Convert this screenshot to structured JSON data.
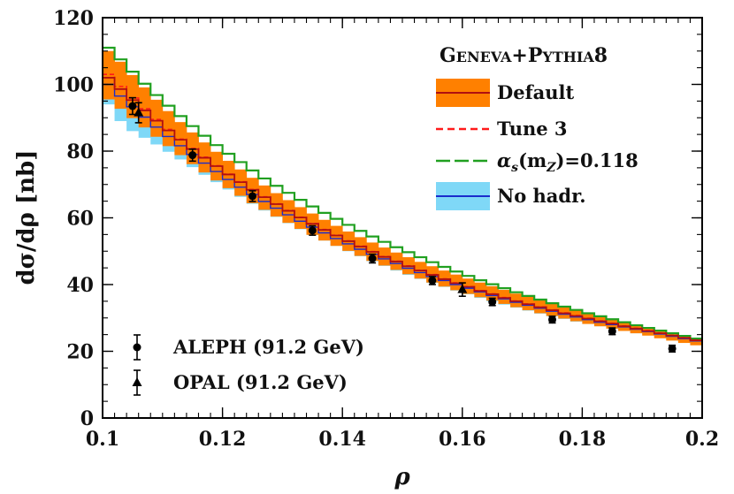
{
  "chart_data": {
    "type": "line",
    "xlabel": "ρ",
    "ylabel": "dσ/dρ [nb]",
    "xlim": [
      0.1,
      0.2
    ],
    "ylim": [
      0,
      120
    ],
    "xticks": [
      0.1,
      0.12,
      0.14,
      0.16,
      0.18,
      0.2
    ],
    "xtick_labels": [
      "0.1",
      "0.12",
      "0.14",
      "0.16",
      "0.18",
      "0.2"
    ],
    "yticks": [
      0,
      20,
      40,
      60,
      80,
      100,
      120
    ],
    "ytick_labels": [
      "0",
      "20",
      "40",
      "60",
      "80",
      "100",
      "120"
    ],
    "grid": false,
    "legend_title": "Geneva+Pythia8",
    "legend_title_parts": [
      {
        "text": "G",
        "big": true
      },
      {
        "text": "ENEVA",
        "big": false
      },
      {
        "text": "+P",
        "big": true
      },
      {
        "text": "YTHIA",
        "big": false
      },
      {
        "text": "8",
        "big": true
      }
    ],
    "legend_position": "top-right",
    "bin_edges": [
      0.1,
      0.102,
      0.104,
      0.106,
      0.108,
      0.11,
      0.112,
      0.114,
      0.116,
      0.118,
      0.12,
      0.122,
      0.124,
      0.126,
      0.128,
      0.13,
      0.132,
      0.134,
      0.136,
      0.138,
      0.14,
      0.142,
      0.144,
      0.146,
      0.148,
      0.15,
      0.152,
      0.154,
      0.156,
      0.158,
      0.16,
      0.162,
      0.164,
      0.166,
      0.168,
      0.17,
      0.172,
      0.174,
      0.176,
      0.178,
      0.18,
      0.182,
      0.184,
      0.186,
      0.188,
      0.19,
      0.192,
      0.194,
      0.196,
      0.198,
      0.2
    ],
    "series": [
      {
        "name": "Default",
        "style": "band-line",
        "color": "#ff8000",
        "line_color": "#b01010",
        "central": [
          102.0,
          98.6,
          95.3,
          92.2,
          89.1,
          86.2,
          83.4,
          80.6,
          78.0,
          75.5,
          73.0,
          70.7,
          68.4,
          66.2,
          64.1,
          62.1,
          60.1,
          58.2,
          56.4,
          54.7,
          53.0,
          51.4,
          49.8,
          48.3,
          46.9,
          45.5,
          44.2,
          42.9,
          41.6,
          40.4,
          39.3,
          38.1,
          37.1,
          36.0,
          35.0,
          34.1,
          33.2,
          32.3,
          31.4,
          30.6,
          29.8,
          29.0,
          28.3,
          27.5,
          26.8,
          26.1,
          25.4,
          24.7,
          24.0,
          23.3
        ],
        "low": [
          95.5,
          92.7,
          89.9,
          87.1,
          84.3,
          81.5,
          78.8,
          76.1,
          73.6,
          71.2,
          68.9,
          66.6,
          64.4,
          62.4,
          60.4,
          58.5,
          56.7,
          54.9,
          53.2,
          51.6,
          50.1,
          48.6,
          47.1,
          45.7,
          44.4,
          43.1,
          41.8,
          40.6,
          39.4,
          38.3,
          37.2,
          36.2,
          35.2,
          34.2,
          33.2,
          32.3,
          31.4,
          30.6,
          29.8,
          29.0,
          28.2,
          27.5,
          26.8,
          26.1,
          25.4,
          24.7,
          23.9,
          23.2,
          22.5,
          21.8
        ],
        "high": [
          110.0,
          106.8,
          102.8,
          99.1,
          95.4,
          92.0,
          88.7,
          85.6,
          82.6,
          79.8,
          77.1,
          74.5,
          72.0,
          69.7,
          67.4,
          65.3,
          63.2,
          61.3,
          59.4,
          57.6,
          55.9,
          54.2,
          52.6,
          51.1,
          49.6,
          48.2,
          46.8,
          45.5,
          44.2,
          43.0,
          41.8,
          40.6,
          39.5,
          38.4,
          37.3,
          36.3,
          35.3,
          34.3,
          33.4,
          32.5,
          31.6,
          30.7,
          29.8,
          28.9,
          28.0,
          27.2,
          26.4,
          25.6,
          24.8,
          24.0
        ]
      },
      {
        "name": "Tune 3",
        "style": "dashed",
        "color": "#ff1a1a",
        "values": [
          103.0,
          99.4,
          95.9,
          92.7,
          89.5,
          86.5,
          83.6,
          80.8,
          78.2,
          75.6,
          73.1,
          70.8,
          68.5,
          66.3,
          64.2,
          62.2,
          60.2,
          58.3,
          56.5,
          54.8,
          53.1,
          51.5,
          49.9,
          48.4,
          47.0,
          45.6,
          44.3,
          43.0,
          41.7,
          40.5,
          39.4,
          38.2,
          37.2,
          36.1,
          35.1,
          34.2,
          33.3,
          32.4,
          31.5,
          30.7,
          29.9,
          29.1,
          28.4,
          27.6,
          26.9,
          26.2,
          25.5,
          24.8,
          24.1,
          23.4
        ]
      },
      {
        "name": "αs(mZ)=0.118",
        "label_parts": [
          {
            "text": "α",
            "kind": "base"
          },
          {
            "text": "s",
            "kind": "sub"
          },
          {
            "text": "(m",
            "kind": "base"
          },
          {
            "text": "Z",
            "kind": "sub"
          },
          {
            "text": ")=0.118",
            "kind": "base"
          }
        ],
        "style": "longdash",
        "color": "#20a020",
        "values": [
          111.0,
          107.5,
          103.8,
          100.2,
          96.8,
          93.6,
          90.5,
          87.5,
          84.6,
          81.8,
          79.2,
          76.7,
          74.2,
          71.8,
          69.6,
          67.5,
          65.4,
          63.4,
          61.5,
          59.7,
          57.9,
          56.1,
          54.4,
          52.8,
          51.2,
          49.7,
          48.2,
          46.7,
          45.3,
          43.9,
          42.6,
          41.3,
          40.1,
          38.9,
          37.7,
          36.6,
          35.5,
          34.4,
          33.4,
          32.4,
          31.4,
          30.5,
          29.6,
          28.7,
          27.8,
          27.0,
          26.2,
          25.4,
          24.6,
          23.8
        ]
      },
      {
        "name": "No hadr.",
        "style": "band-line",
        "color": "#7fd8f7",
        "line_color": "#1a2ccc",
        "central": [
          100.0,
          96.5,
          93.3,
          90.2,
          87.2,
          84.4,
          81.6,
          79.0,
          76.4,
          73.9,
          71.5,
          69.2,
          67.0,
          64.9,
          62.9,
          60.9,
          59.0,
          57.2,
          55.5,
          53.8,
          52.2,
          50.6,
          49.1,
          47.7,
          46.3,
          44.9,
          43.6,
          42.4,
          41.2,
          40.0,
          38.9,
          37.8,
          36.7,
          35.7,
          34.7,
          33.8,
          32.9,
          32.0,
          31.1,
          30.3,
          29.5,
          28.7,
          28.0,
          27.3,
          26.6,
          25.9,
          25.2,
          24.5,
          23.8,
          23.1
        ],
        "low": [
          94.0,
          89.0,
          86.0,
          84.0,
          82.0,
          79.8,
          77.5,
          75.2,
          72.9,
          70.7,
          68.5,
          66.3,
          64.2,
          62.2,
          60.3,
          58.4,
          56.6,
          54.9,
          53.2,
          51.6,
          50.0,
          48.5,
          47.0,
          45.6,
          44.2,
          42.9,
          41.7,
          40.5,
          39.3,
          38.2,
          37.1,
          36.0,
          35.0,
          34.0,
          33.1,
          32.2,
          31.3,
          30.5,
          29.7,
          28.9,
          28.2,
          27.5,
          26.8,
          26.1,
          25.4,
          24.8,
          24.1,
          23.4,
          22.7,
          22.0
        ],
        "high": [
          106.0,
          102.5,
          99.0,
          95.5,
          92.3,
          89.2,
          86.1,
          83.2,
          80.4,
          77.7,
          75.1,
          72.6,
          70.2,
          67.9,
          65.7,
          63.6,
          61.5,
          59.5,
          57.6,
          55.8,
          54.1,
          52.4,
          50.8,
          49.3,
          47.8,
          46.4,
          45.0,
          43.7,
          42.4,
          41.2,
          40.0,
          38.9,
          37.8,
          36.8,
          35.8,
          34.8,
          33.9,
          33.0,
          32.1,
          31.3,
          30.5,
          29.7,
          29.0,
          28.2,
          27.5,
          26.8,
          26.1,
          25.4,
          24.7,
          24.0
        ]
      }
    ],
    "data_series": [
      {
        "name": "ALEPH (91.2 GeV)",
        "marker": "circle",
        "points": [
          {
            "x": 0.105,
            "y": 93.5,
            "err": 2.5
          },
          {
            "x": 0.115,
            "y": 78.8,
            "err": 1.8
          },
          {
            "x": 0.125,
            "y": 66.5,
            "err": 1.6
          },
          {
            "x": 0.135,
            "y": 56.2,
            "err": 1.4
          },
          {
            "x": 0.145,
            "y": 47.8,
            "err": 1.3
          },
          {
            "x": 0.155,
            "y": 41.2,
            "err": 1.2
          },
          {
            "x": 0.165,
            "y": 34.8,
            "err": 1.1
          },
          {
            "x": 0.175,
            "y": 29.5,
            "err": 1.0
          },
          {
            "x": 0.185,
            "y": 26.0,
            "err": 1.0
          },
          {
            "x": 0.195,
            "y": 20.8,
            "err": 1.0
          }
        ]
      },
      {
        "name": "OPAL (91.2 GeV)",
        "marker": "triangle",
        "points": [
          {
            "x": 0.106,
            "y": 91.5,
            "err": 3.0
          },
          {
            "x": 0.16,
            "y": 38.5,
            "err": 2.0
          }
        ]
      }
    ]
  }
}
